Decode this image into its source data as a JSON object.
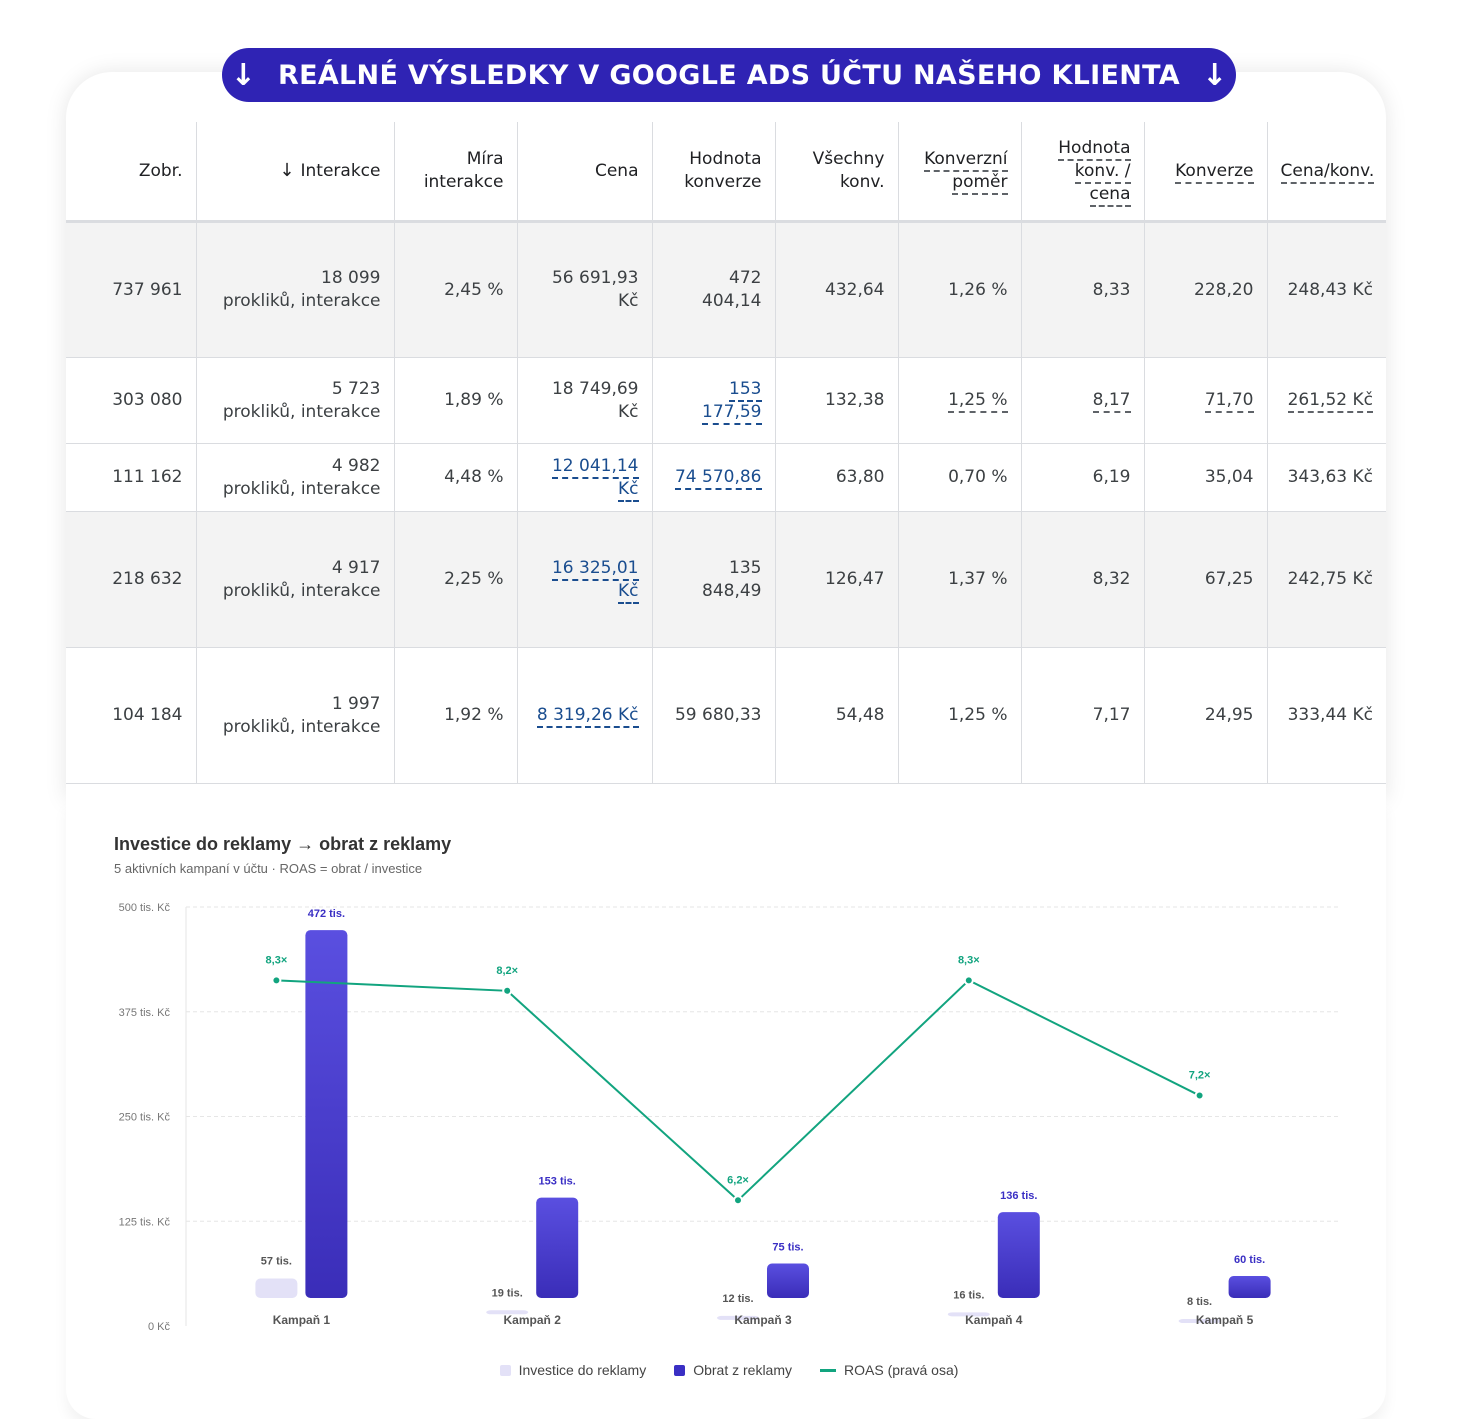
{
  "banner": {
    "arrow_left": "↓",
    "text": "REÁLNÉ VÝSLEDKY V GOOGLE ADS ÚČTU NAŠEHO KLIENTA",
    "arrow_right": "↓"
  },
  "table": {
    "sort_icon": "arrow-down-icon",
    "headers": [
      {
        "line1": "Zobr.",
        "line2": "",
        "line3": ""
      },
      {
        "line1": "↓ Interakce",
        "line2": "",
        "line3": ""
      },
      {
        "line1": "Míra",
        "line2": "interakce",
        "line3": ""
      },
      {
        "line1": "Cena",
        "line2": "",
        "line3": ""
      },
      {
        "line1": "Hodnota",
        "line2": "konverze",
        "line3": ""
      },
      {
        "line1": "Všechny",
        "line2": "konv.",
        "line3": ""
      },
      {
        "line1": "Konverzní",
        "line2": "poměr",
        "line3": ""
      },
      {
        "line1": "Hodnota",
        "line2": "konv. /",
        "line3": "cena"
      },
      {
        "line1": "Konverze",
        "line2": "",
        "line3": ""
      },
      {
        "line1": "Cena/konv.",
        "line2": "",
        "line3": ""
      }
    ],
    "rows": [
      {
        "zobr": "737 961",
        "interakce": "18 099",
        "interakce_sub": "prokliků, interakce",
        "mira": "2,45 %",
        "cena": "56 691,93 Kč",
        "hodnota": "472 404,14",
        "vsechny": "432,64",
        "pomer": "1,26 %",
        "hodnota_cena": "8,33",
        "konverze": "228,20",
        "cena_konv": "248,43 Kč"
      },
      {
        "zobr": "303 080",
        "interakce": "5 723",
        "interakce_sub": "prokliků, interakce",
        "mira": "1,89 %",
        "cena": "18 749,69 Kč",
        "hodnota": "153 177,59",
        "vsechny": "132,38",
        "pomer": "1,25 %",
        "hodnota_cena": "8,17",
        "konverze": "71,70",
        "cena_konv": "261,52 Kč"
      },
      {
        "zobr": "111 162",
        "interakce": "4 982",
        "interakce_sub": "prokliků, interakce",
        "mira": "4,48 %",
        "cena": "12 041,14 Kč",
        "hodnota": "74 570,86",
        "vsechny": "63,80",
        "pomer": "0,70 %",
        "hodnota_cena": "6,19",
        "konverze": "35,04",
        "cena_konv": "343,63 Kč"
      },
      {
        "zobr": "218 632",
        "interakce": "4 917",
        "interakce_sub": "prokliků, interakce",
        "mira": "2,25 %",
        "cena": "16 325,01 Kč",
        "hodnota": "135 848,49",
        "vsechny": "126,47",
        "pomer": "1,37 %",
        "hodnota_cena": "8,32",
        "konverze": "67,25",
        "cena_konv": "242,75 Kč"
      },
      {
        "zobr": "104 184",
        "interakce": "1 997",
        "interakce_sub": "prokliků, interakce",
        "mira": "1,92 %",
        "cena": "8 319,26 Kč",
        "hodnota": "59 680,33",
        "vsechny": "54,48",
        "pomer": "1,25 %",
        "hodnota_cena": "7,17",
        "konverze": "24,95",
        "cena_konv": "333,44 Kč"
      }
    ]
  },
  "chart_data": {
    "type": "bar",
    "title": "Investice do reklamy → obrat z reklamy",
    "subtitle": "5 aktivních kampaní v účtu · ROAS = obrat / investice",
    "categories": [
      "Kampaň 1",
      "Kampaň 2",
      "Kampaň 3",
      "Kampaň 4",
      "Kampaň 5"
    ],
    "ylim": [
      0,
      500000
    ],
    "y_ticks": [
      0,
      125000,
      250000,
      375000,
      500000
    ],
    "y_tick_labels": [
      "0 Kč",
      "125 tis. Kč",
      "250 tis. Kč",
      "375 tis. Kč",
      "500 tis. Kč"
    ],
    "grid": true,
    "legend_position": "bottom",
    "series": [
      {
        "name": "Investice do reklamy",
        "type": "bar",
        "color": "#e3e1f7",
        "values": [
          56692,
          18750,
          12041,
          16325,
          8319
        ],
        "labels": [
          "57 tis.",
          "19 tis.",
          "12 tis.",
          "16 tis.",
          "8 tis."
        ]
      },
      {
        "name": "Obrat z reklamy",
        "type": "bar",
        "color": "#4a3fd6",
        "values": [
          472404,
          153178,
          74571,
          135848,
          59680
        ],
        "labels": [
          "472 tis.",
          "153 tis.",
          "75 tis.",
          "136 tis.",
          "60 tis."
        ]
      },
      {
        "name": "ROAS (pravá osa)",
        "type": "line",
        "axis": "right",
        "color": "#12a47f",
        "values": [
          8.3,
          8.2,
          6.2,
          8.3,
          7.2
        ],
        "labels": [
          "8,3×",
          "8,2×",
          "6,2×",
          "8,3×",
          "7,2×"
        ]
      }
    ]
  }
}
